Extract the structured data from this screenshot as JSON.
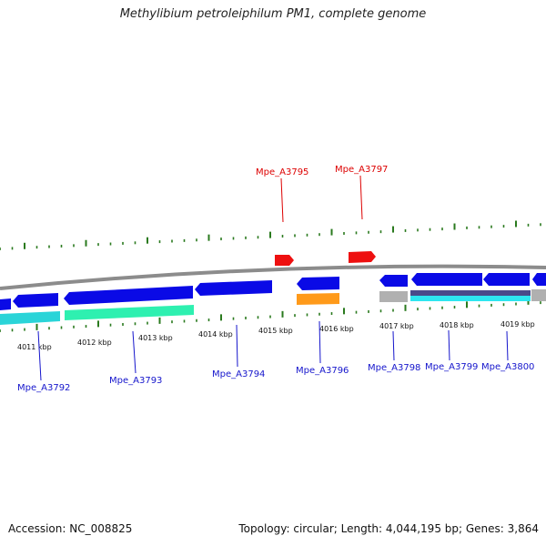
{
  "title": "Methylibium petroleiphilum PM1, complete genome",
  "footer": {
    "accession": "Accession: NC_008825",
    "summary": "Topology: circular; Length: 4,044,195 bp; Genes: 3,864"
  },
  "colors": {
    "backbone": "#8c8c8c",
    "cds": "#0a0ae6",
    "label_top": "#dd0000",
    "label_bottom": "#1515cc",
    "tick": "#2a7a1e",
    "cyan": "#2ad4d8",
    "aqua_green": "#2ef0b0",
    "orange": "#ff9a1a",
    "gray": "#b0b0b0"
  },
  "kbp_labels": [
    "4011 kbp",
    "4012 kbp",
    "4013 kbp",
    "4014 kbp",
    "4015 kbp",
    "4016 kbp",
    "4017 kbp",
    "4018 kbp",
    "4019 kbp"
  ],
  "genes_top": [
    "Mpe_A3795",
    "Mpe_A3797"
  ],
  "genes_bottom": [
    "Mpe_A3792",
    "Mpe_A3793",
    "Mpe_A3794",
    "Mpe_A3796",
    "Mpe_A3798",
    "Mpe_A3799",
    "Mpe_A3800"
  ]
}
